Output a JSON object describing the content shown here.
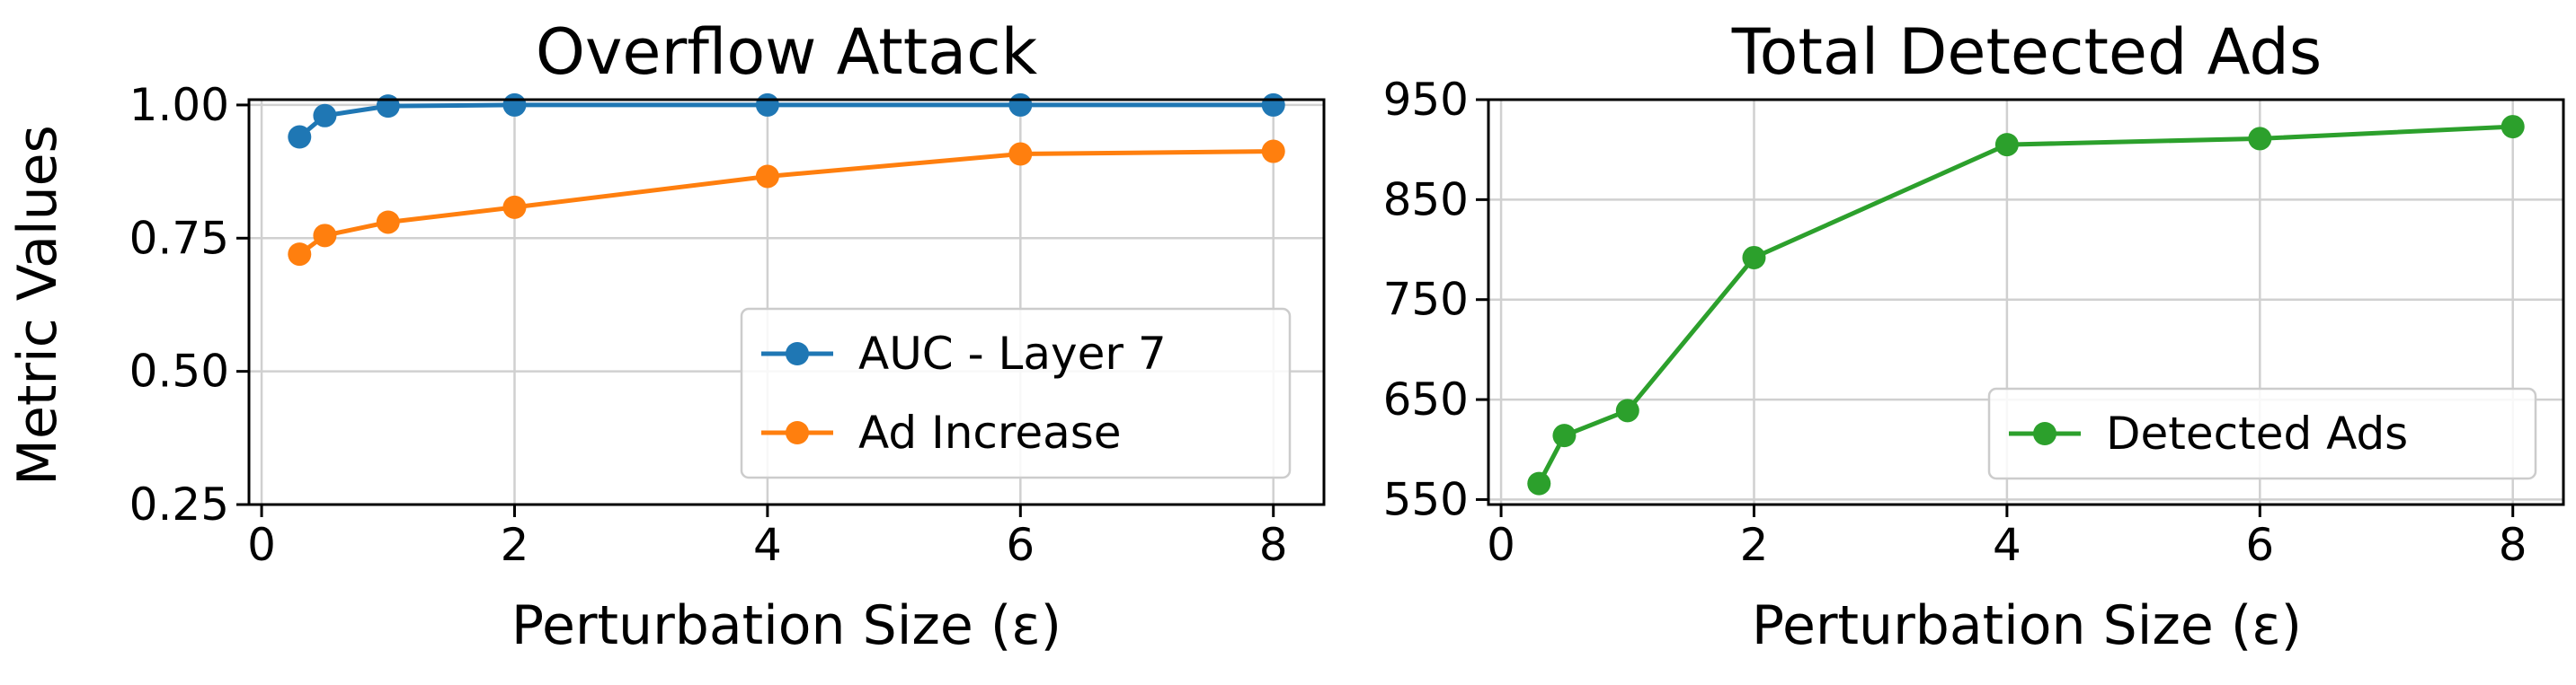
{
  "figure": {
    "ylabel_shared": "Metric Values"
  },
  "chart_data": [
    {
      "type": "line",
      "title": "Overflow Attack",
      "xlabel": "Perturbation Size (ε)",
      "ylabel": "Metric Values",
      "xlim": [
        -0.1,
        8.4
      ],
      "ylim": [
        0.25,
        1.01
      ],
      "xticks": [
        0,
        2,
        4,
        6,
        8
      ],
      "yticks": [
        0.25,
        0.5,
        0.75,
        1.0
      ],
      "ytick_labels": [
        "0.25",
        "0.50",
        "0.75",
        "1.00"
      ],
      "grid": true,
      "legend_position": "lower right",
      "series": [
        {
          "name": "AUC - Layer 7",
          "color": "#1f77b4",
          "x": [
            0.3,
            0.5,
            1,
            2,
            4,
            6,
            8
          ],
          "y": [
            0.94,
            0.98,
            0.998,
            1.0,
            1.0,
            1.0,
            1.0
          ]
        },
        {
          "name": "Ad Increase",
          "color": "#ff7f0e",
          "x": [
            0.3,
            0.5,
            1,
            2,
            4,
            6,
            8
          ],
          "y": [
            0.72,
            0.755,
            0.78,
            0.808,
            0.866,
            0.908,
            0.913
          ]
        }
      ]
    },
    {
      "type": "line",
      "title": "Total Detected Ads",
      "xlabel": "Perturbation Size (ε)",
      "ylabel": "",
      "xlim": [
        -0.1,
        8.4
      ],
      "ylim": [
        545,
        950
      ],
      "xticks": [
        0,
        2,
        4,
        6,
        8
      ],
      "yticks": [
        550,
        650,
        750,
        850,
        950
      ],
      "ytick_labels": [
        "550",
        "650",
        "750",
        "850",
        "950"
      ],
      "grid": true,
      "legend_position": "lower right",
      "series": [
        {
          "name": "Detected Ads",
          "color": "#2ca02c",
          "x": [
            0.3,
            0.5,
            1,
            2,
            4,
            6,
            8
          ],
          "y": [
            566,
            614,
            639,
            792,
            905,
            911,
            923
          ]
        }
      ]
    }
  ]
}
